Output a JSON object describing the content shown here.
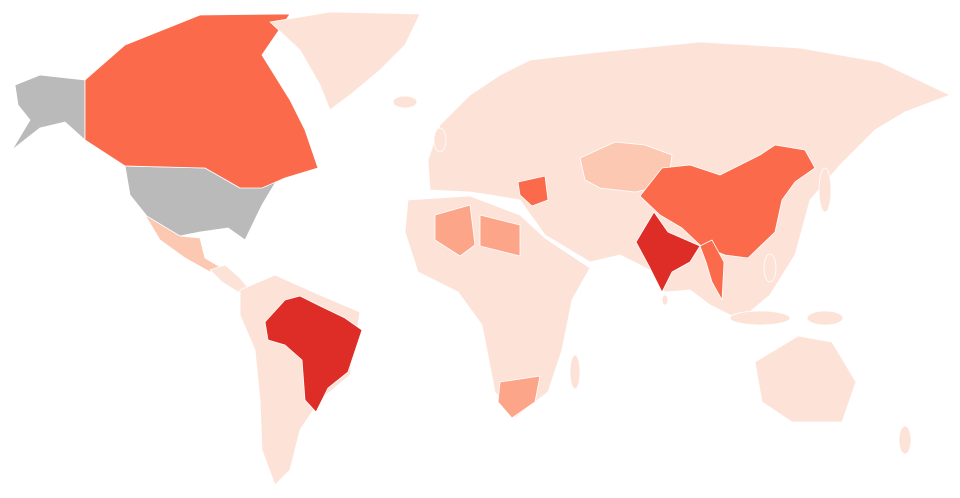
{
  "map": {
    "type": "choropleth",
    "colors": {
      "no_data": "#bababa",
      "level_1": "#fde2d8",
      "level_2": "#fcc8b2",
      "level_3": "#fca588",
      "level_4": "#fb6a4a",
      "level_5": "#de2d26"
    },
    "regions": [
      {
        "id": "alaska",
        "level": "no_data"
      },
      {
        "id": "usa",
        "level": "no_data"
      },
      {
        "id": "canada",
        "level": "level_4"
      },
      {
        "id": "greenland",
        "level": "level_1"
      },
      {
        "id": "mexico",
        "level": "level_2"
      },
      {
        "id": "central-america",
        "level": "level_1"
      },
      {
        "id": "south-america",
        "level": "level_1"
      },
      {
        "id": "brazil",
        "level": "level_5"
      },
      {
        "id": "eurasia",
        "level": "level_1"
      },
      {
        "id": "kazakhstan",
        "level": "level_2"
      },
      {
        "id": "china",
        "level": "level_4"
      },
      {
        "id": "india",
        "level": "level_5"
      },
      {
        "id": "myanmar",
        "level": "level_4"
      },
      {
        "id": "iraq-syria",
        "level": "level_4"
      },
      {
        "id": "africa",
        "level": "level_1"
      },
      {
        "id": "algeria",
        "level": "level_3"
      },
      {
        "id": "libya",
        "level": "level_3"
      },
      {
        "id": "south-africa",
        "level": "level_3"
      },
      {
        "id": "australia",
        "level": "level_1"
      }
    ]
  }
}
